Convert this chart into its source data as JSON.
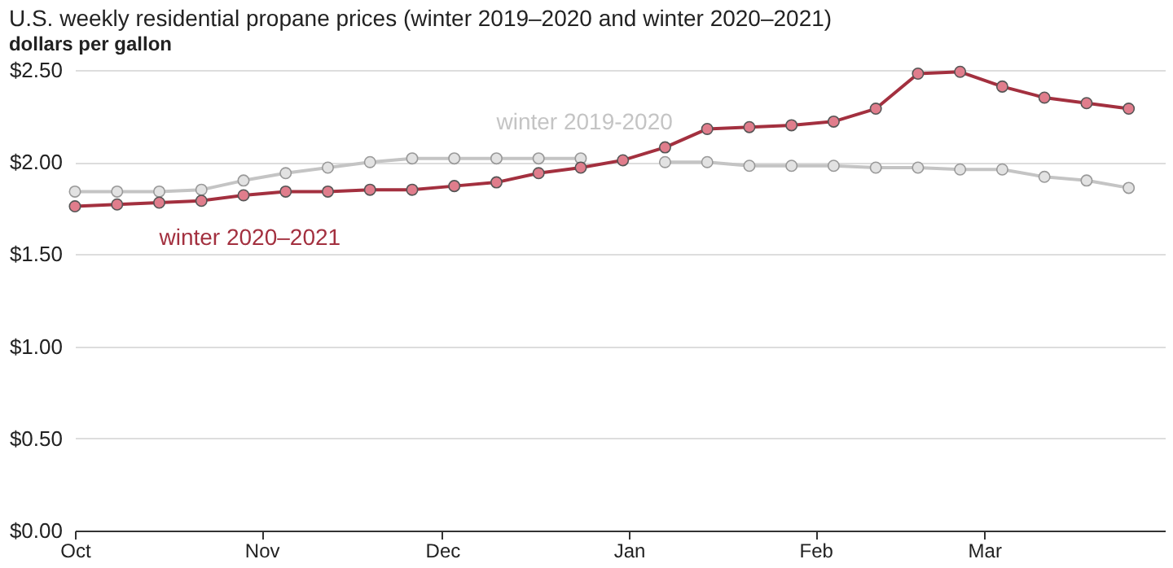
{
  "chart_data": {
    "type": "line",
    "title": "U.S. weekly residential propane prices (winter 2019–2020 and winter 2020–2021)",
    "subtitle": "dollars per gallon",
    "x": [
      "2020-10-01",
      "2020-10-08",
      "2020-10-15",
      "2020-10-22",
      "2020-10-29",
      "2020-11-05",
      "2020-11-12",
      "2020-11-19",
      "2020-11-26",
      "2020-12-03",
      "2020-12-10",
      "2020-12-17",
      "2020-12-24",
      "2020-12-31",
      "2021-01-07",
      "2021-01-14",
      "2021-01-21",
      "2021-01-28",
      "2021-02-04",
      "2021-02-11",
      "2021-02-18",
      "2021-02-25",
      "2021-03-04",
      "2021-03-11",
      "2021-03-18",
      "2021-03-25"
    ],
    "series": [
      {
        "name": "winter 2019-2020",
        "color": "#c4c4c4",
        "values": [
          1.84,
          1.84,
          1.84,
          1.85,
          1.9,
          1.94,
          1.97,
          2.0,
          2.02,
          2.02,
          2.02,
          2.02,
          2.02,
          null,
          2.0,
          2.0,
          1.98,
          1.98,
          1.98,
          1.97,
          1.97,
          1.96,
          1.96,
          1.92,
          1.9,
          1.86
        ]
      },
      {
        "name": "winter 2020–2021",
        "color": "#a3303f",
        "values": [
          1.76,
          1.77,
          1.78,
          1.79,
          1.82,
          1.84,
          1.84,
          1.85,
          1.85,
          1.87,
          1.89,
          1.94,
          1.97,
          2.01,
          2.08,
          2.18,
          2.19,
          2.2,
          2.22,
          2.29,
          2.48,
          2.49,
          2.41,
          2.35,
          2.32,
          2.29
        ]
      }
    ],
    "xlim": [
      "2020-10-01",
      "2021-03-31"
    ],
    "xticks": [
      {
        "value": "2020-10-01",
        "label": "Oct"
      },
      {
        "value": "2020-11-01",
        "label": "Nov"
      },
      {
        "value": "2020-12-01",
        "label": "Dec"
      },
      {
        "value": "2021-01-01",
        "label": "Jan"
      },
      {
        "value": "2021-02-01",
        "label": "Feb"
      },
      {
        "value": "2021-03-01",
        "label": "Mar"
      }
    ],
    "ylim": [
      0,
      2.5
    ],
    "yticks": [
      {
        "value": 0,
        "label": "$0.00"
      },
      {
        "value": 0.5,
        "label": "$0.50"
      },
      {
        "value": 1,
        "label": "$1.00"
      },
      {
        "value": 1.5,
        "label": "$1.50"
      },
      {
        "value": 2,
        "label": "$2.00"
      },
      {
        "value": 2.5,
        "label": "$2.50"
      }
    ],
    "grid": "y",
    "marker": "circle",
    "line_style": "solid"
  }
}
